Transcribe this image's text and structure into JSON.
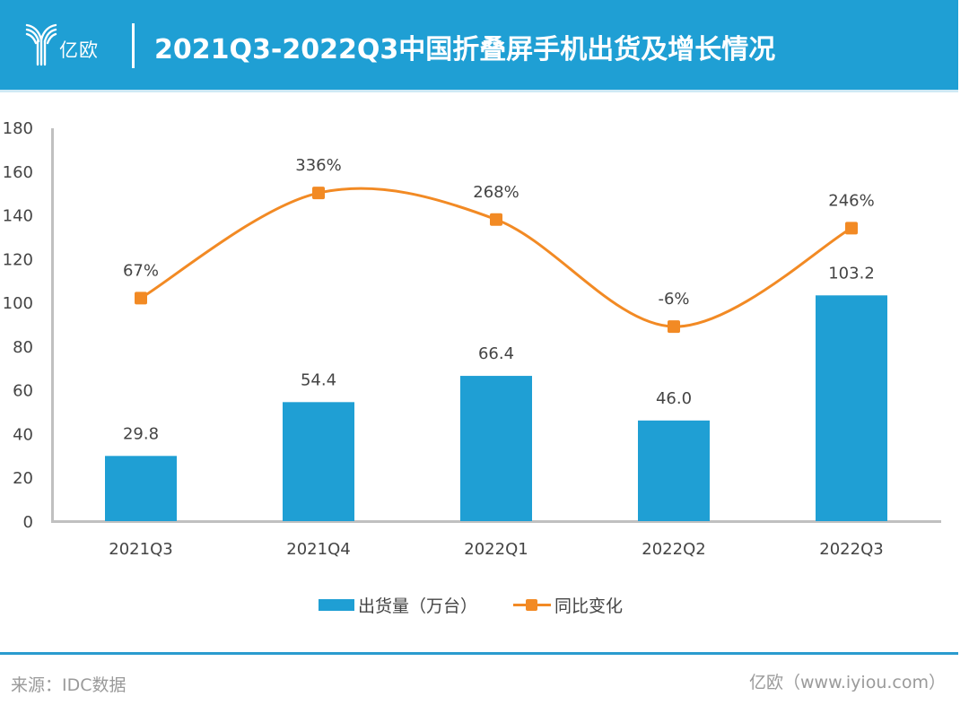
{
  "header": {
    "logo_text": "亿欧",
    "title": "2021Q3-2022Q3中国折叠屏手机出货及增长情况"
  },
  "colors": {
    "header_bg": "#1f9fd4",
    "bar": "#1f9fd4",
    "line": "#f28a24",
    "axis": "#c0c0c0",
    "text": "#444444",
    "footer_text": "#9a9a9a"
  },
  "chart_data": {
    "type": "bar+line",
    "title": "2021Q3-2022Q3中国折叠屏手机出货及增长情况",
    "categories": [
      "2021Q3",
      "2021Q4",
      "2022Q1",
      "2022Q2",
      "2022Q3"
    ],
    "series": [
      {
        "name": "出货量（万台）",
        "type": "bar",
        "axis": "left",
        "values": [
          29.8,
          54.4,
          66.4,
          46.0,
          103.2
        ],
        "labels": [
          "29.8",
          "54.4",
          "66.4",
          "46.0",
          "103.2"
        ]
      },
      {
        "name": "同比变化",
        "type": "line",
        "axis": "right-hidden",
        "smooth": true,
        "marker": "square",
        "values": [
          67,
          336,
          268,
          -6,
          246
        ],
        "labels": [
          "67%",
          "336%",
          "268%",
          "-6%",
          "246%"
        ]
      }
    ],
    "yaxis_left": {
      "ylim": [
        0,
        180
      ],
      "ticks": [
        0,
        20,
        40,
        60,
        80,
        100,
        120,
        140,
        160,
        180
      ],
      "tick_labels": [
        "0",
        "20",
        "40",
        "60",
        "80",
        "100",
        "120",
        "140",
        "160",
        "180"
      ]
    },
    "yaxis_right": {
      "ylim": [
        -504,
        504
      ],
      "visible": false
    },
    "xlabel": "",
    "ylabel": "",
    "grid": false,
    "legend": {
      "position": "bottom-center",
      "entries": [
        "出货量（万台）",
        "同比变化"
      ]
    }
  },
  "footer": {
    "source": "来源：IDC数据",
    "credit": "亿欧（www.iyiou.com）"
  }
}
